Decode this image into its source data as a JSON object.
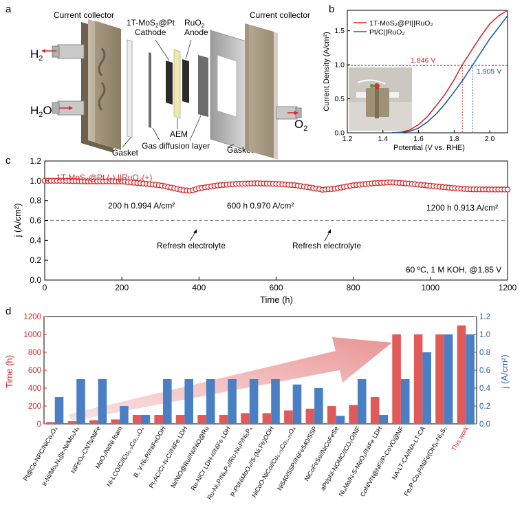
{
  "panels": {
    "a": {
      "label": "a",
      "current_collector_left": "Current collector",
      "current_collector_right": "Current collector",
      "cathode_line1": "1T-MoS",
      "cathode_sub": "2",
      "cathode_line1b": "@Pt",
      "cathode_line2": "Cathode",
      "anode_line1": "RuO",
      "anode_sub": "2",
      "anode_line2": "Anode",
      "h2": "H",
      "h2_sub": "2",
      "h2o": "H",
      "h2o_sub": "2",
      "h2o_tail": "O",
      "o2": "O",
      "o2_sub": "2",
      "gasket_left": "Gasket",
      "gasket_right": "Gasket",
      "aem": "AEM",
      "gdl": "Gas diffusion layer"
    },
    "b": {
      "label": "b"
    },
    "c": {
      "label": "c"
    },
    "d": {
      "label": "d"
    }
  },
  "chart_data": [
    {
      "id": "b",
      "type": "line",
      "xlabel": "Potential (V vs. RHE)",
      "ylabel": "Current Density (A/cm²)",
      "xlim": [
        1.2,
        2.1
      ],
      "ylim": [
        0,
        1.8
      ],
      "xticks": [
        "1.2",
        "1.4",
        "1.6",
        "1.8",
        "2.0"
      ],
      "yticks": [
        "0.0",
        "0.5",
        "1.0",
        "1.5"
      ],
      "legend": "top-left",
      "reference_line_y": 1.0,
      "series": [
        {
          "name": "1T-MoS₂@Pt||RuO₂",
          "color": "#d62728",
          "x": [
            1.45,
            1.5,
            1.55,
            1.6,
            1.65,
            1.7,
            1.75,
            1.8,
            1.846,
            1.9,
            1.95,
            2.0,
            2.05,
            2.1
          ],
          "y": [
            0.0,
            0.01,
            0.04,
            0.12,
            0.24,
            0.4,
            0.57,
            0.78,
            1.0,
            1.22,
            1.42,
            1.6,
            1.72,
            1.8
          ]
        },
        {
          "name": "Pt/C||RuO₂",
          "color": "#1f5aa8",
          "x": [
            1.45,
            1.5,
            1.55,
            1.6,
            1.65,
            1.7,
            1.75,
            1.8,
            1.85,
            1.905,
            1.95,
            2.0,
            2.05,
            2.1
          ],
          "y": [
            0.0,
            0.005,
            0.02,
            0.07,
            0.16,
            0.28,
            0.43,
            0.6,
            0.78,
            1.0,
            1.18,
            1.38,
            1.55,
            1.72
          ]
        }
      ],
      "annotations": [
        {
          "text": "1.846 V",
          "x": 1.846,
          "color": "#d62728"
        },
        {
          "text": "1.905 V",
          "x": 1.905,
          "color": "#1f5aa8"
        }
      ]
    },
    {
      "id": "c",
      "type": "scatter",
      "xlabel": "Time (h)",
      "ylabel": "j (A/cm²)",
      "xlim": [
        0,
        1200
      ],
      "ylim": [
        0,
        1.2
      ],
      "xticks": [
        "0",
        "200",
        "400",
        "600",
        "800",
        "1000",
        "1200"
      ],
      "yticks": [
        "0.0",
        "0.2",
        "0.4",
        "0.6",
        "0.8",
        "1.0",
        "1.2"
      ],
      "legend_text": "1T-MoS₂@Pt (-) ||RuO₂(+)",
      "condition_text": "60 ºC, 1 M KOH, @1.85 V",
      "reference_line_y": 1.0,
      "series_color": "#d62728",
      "x": [
        0,
        50,
        100,
        150,
        200,
        250,
        300,
        330,
        360,
        380,
        400,
        450,
        500,
        550,
        600,
        650,
        700,
        720,
        750,
        800,
        850,
        900,
        950,
        1000,
        1050,
        1100,
        1150,
        1200
      ],
      "y": [
        1.0,
        1.0,
        0.995,
        0.995,
        0.994,
        0.975,
        0.955,
        0.93,
        0.905,
        0.9,
        0.925,
        0.955,
        0.97,
        0.975,
        0.97,
        0.955,
        0.925,
        0.91,
        0.92,
        0.955,
        0.975,
        0.985,
        0.97,
        0.95,
        0.93,
        0.915,
        0.913,
        0.913
      ],
      "labels": [
        {
          "text": "200 h 0.994 A/cm²",
          "x": 200,
          "y": 1.13
        },
        {
          "text": "600 h 0.970 A/cm²",
          "x": 600,
          "y": 1.13
        },
        {
          "text": "1200 h 0.913 A/cm²",
          "x": 1090,
          "y": 1.12
        }
      ],
      "arrows": [
        {
          "text": "Refresh electrolyte",
          "x": 370,
          "y": 0.9
        },
        {
          "text": "Refresh electrolyte",
          "x": 720,
          "y": 0.91
        }
      ]
    },
    {
      "id": "d",
      "type": "bar",
      "ylabel_left": "Time (h)",
      "ylabel_right": "j (A/cm²)",
      "ylim_left": [
        0,
        1200
      ],
      "ylim_right": [
        0,
        1.2
      ],
      "yticks_left": [
        "0",
        "200",
        "400",
        "600",
        "800",
        "1000",
        "1200"
      ],
      "yticks_right": [
        "0.0",
        "0.2",
        "0.4",
        "0.6",
        "0.8",
        "1.0",
        "1.2"
      ],
      "categories": [
        "Pt@Co-NPC/NiCo₂O₄",
        "Ir-Ni/Mo₅N₆||Ir-Ni/Mo₅N₆",
        "NiFeOₓ-CNTs/NiFe",
        "MoO₂/Ni/Ni foam",
        "Ni-LCO/C//Cu₀.₅Co₂.₅O₄",
        "B, V-Ni₂P//NiFeOOH",
        "Pt-AC/Cr-N-C//NiFe LDH",
        "Ni/NiO@Ru//Ni/NiO@Ru",
        "Ru-NiCr LDH-r//NiFe LDH",
        "Ru-Ni₂P/Ni₅P₄//Ru-Ni₂P/Ni₅P₄",
        "P-Pt/NiMoO₄//S-(Ni,Fe)OOH",
        "NiCoO-NiCo//Cu₀.₇₅Co₂.₂₅O₄",
        "Ni540/SSP//NiFe540/SSP",
        "NiCoFeSe//NiCoFeSe",
        "aPt/pNi-NOMC//CO₂O/NF",
        "Ni₄Mo/N-S-MoO₂//NiFe LDH",
        "CoN/VN@NF//P-CoVO@NF",
        "NA-LT-CA//NA-LT-CA",
        "Fe₂P-Co₂P/NiFe(OH)ₓ-Ni₃S₂",
        "This work"
      ],
      "series": [
        {
          "name": "Time (h)",
          "axis": "left",
          "color": "#e05a5a",
          "values": [
            20,
            30,
            40,
            50,
            100,
            100,
            100,
            100,
            100,
            120,
            120,
            150,
            170,
            200,
            210,
            300,
            1000,
            1000,
            1000,
            1100
          ]
        },
        {
          "name": "j (A/cm²)",
          "axis": "right",
          "color": "#4a7fc4",
          "values": [
            0.3,
            0.5,
            0.5,
            0.2,
            0.1,
            0.5,
            0.5,
            0.5,
            0.5,
            0.5,
            0.5,
            0.44,
            0.4,
            0.09,
            0.5,
            0.1,
            0.5,
            0.8,
            1.0,
            1.0
          ]
        }
      ],
      "highlight_category": "This work",
      "highlight_color": "#d62728"
    }
  ]
}
